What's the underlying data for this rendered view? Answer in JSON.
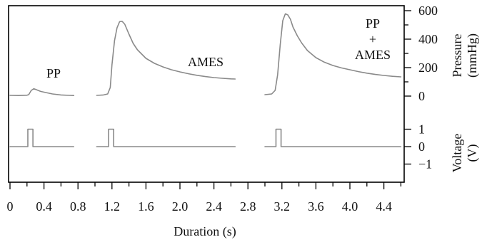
{
  "chart_data": {
    "type": "line",
    "title": "",
    "xlabel": "Duration (s)",
    "xlim": [
      0,
      4.8
    ],
    "x_tick_labels": [
      "0",
      "0.4",
      "0.8",
      "1.2",
      "1.6",
      "2.0",
      "2.4",
      "2.8",
      "3.2",
      "3.6",
      "4.0",
      "4.4"
    ],
    "x_tick_values": [
      0,
      0.4,
      0.8,
      1.2,
      1.6,
      2.0,
      2.4,
      2.8,
      3.2,
      3.6,
      4.0,
      4.4
    ],
    "x_minor_tick_values": [
      0.2,
      0.6,
      1.0,
      1.4,
      1.8,
      2.2,
      2.6,
      3.0,
      3.4,
      3.8,
      4.2,
      4.6
    ],
    "pressure_axis": {
      "label_line1": "Pressure",
      "label_line2": "(mmHg)",
      "tick_labels": [
        "600",
        "400",
        "200",
        "0"
      ],
      "tick_values": [
        600,
        400,
        200,
        0
      ],
      "minor_tick_values": [
        100,
        300,
        500
      ]
    },
    "voltage_axis": {
      "label_line1": "Voltage",
      "label_line2": "(V)",
      "tick_labels": [
        "1",
        "0",
        "−1"
      ],
      "tick_values": [
        1,
        0,
        -1
      ]
    },
    "annotations": {
      "pp": "PP",
      "ames": "AMES",
      "combo_line1": "PP",
      "combo_line2": "+",
      "combo_line3": "AMES"
    },
    "series": [
      {
        "name": "PP",
        "x": [
          0.0,
          0.1,
          0.2,
          0.22,
          0.25,
          0.28,
          0.31,
          0.36,
          0.42,
          0.5,
          0.6,
          0.7,
          0.75
        ],
        "y": [
          5,
          4,
          6,
          10,
          40,
          52,
          45,
          33,
          25,
          15,
          8,
          5,
          4
        ],
        "pulse": {
          "start": 0.21,
          "end": 0.27,
          "high": 1
        },
        "voltage_x_range": [
          0.0,
          0.75
        ]
      },
      {
        "name": "AMES",
        "x": [
          1.02,
          1.1,
          1.15,
          1.18,
          1.2,
          1.23,
          1.26,
          1.29,
          1.32,
          1.35,
          1.4,
          1.45,
          1.5,
          1.6,
          1.7,
          1.8,
          1.9,
          2.0,
          2.1,
          2.2,
          2.3,
          2.4,
          2.5,
          2.6,
          2.65
        ],
        "y": [
          5,
          8,
          15,
          60,
          220,
          390,
          480,
          523,
          525,
          505,
          435,
          370,
          325,
          265,
          230,
          205,
          185,
          170,
          157,
          146,
          137,
          130,
          125,
          121,
          120
        ],
        "pulse": {
          "start": 1.16,
          "end": 1.22,
          "high": 1
        },
        "voltage_x_range": [
          1.02,
          2.65
        ]
      },
      {
        "name": "PP + AMES",
        "x": [
          3.0,
          3.08,
          3.12,
          3.15,
          3.18,
          3.21,
          3.24,
          3.27,
          3.3,
          3.33,
          3.38,
          3.43,
          3.5,
          3.6,
          3.7,
          3.8,
          3.9,
          4.0,
          4.1,
          4.2,
          4.3,
          4.4,
          4.5,
          4.6
        ],
        "y": [
          10,
          15,
          40,
          150,
          360,
          530,
          578,
          570,
          540,
          485,
          425,
          375,
          320,
          270,
          238,
          215,
          198,
          185,
          172,
          161,
          152,
          145,
          139,
          135
        ],
        "pulse": {
          "start": 3.13,
          "end": 3.19,
          "high": 1
        },
        "voltage_x_range": [
          3.0,
          4.6
        ]
      }
    ]
  }
}
